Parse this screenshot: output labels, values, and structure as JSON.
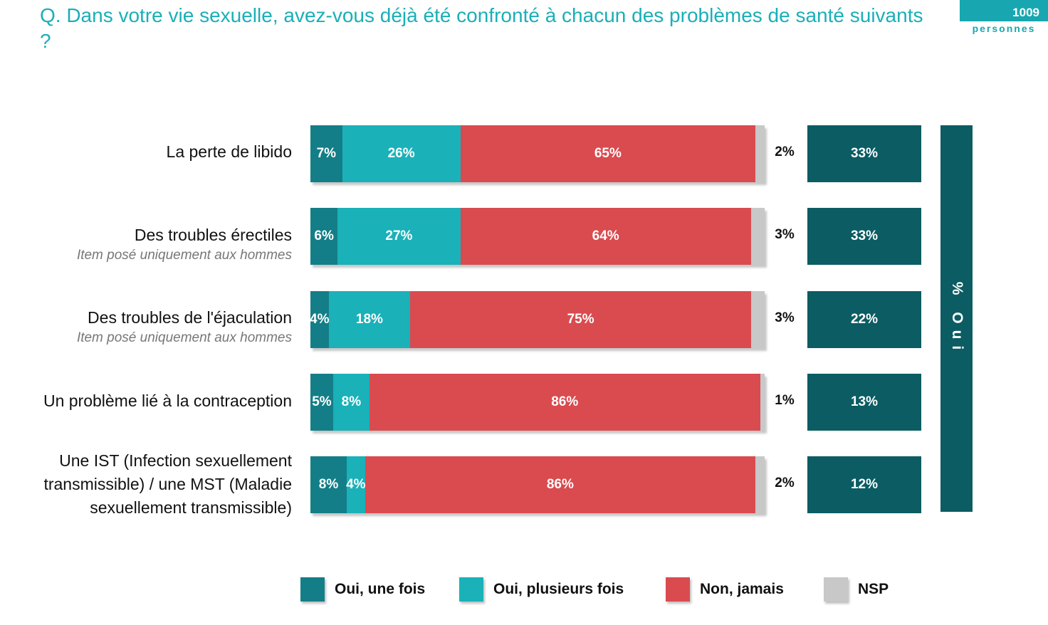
{
  "header": {
    "question": "Q. Dans votre vie sexuelle, avez-vous déjà été confronté à chacun des problèmes de santé suivants ?",
    "sample_count": "1009",
    "sample_label": "personnes"
  },
  "chart_data": {
    "type": "bar",
    "orientation": "horizontal",
    "stacked": true,
    "categories": [
      "La perte de libido",
      "Des troubles érectiles",
      "Des troubles de l'éjaculation",
      "Un problème lié à la contraception",
      "Une IST (Infection sexuellement transmissible) / une MST (Maladie sexuellement transmissible)"
    ],
    "category_notes": [
      "",
      "Item posé uniquement aux hommes",
      "Item posé uniquement aux hommes",
      "",
      ""
    ],
    "series": [
      {
        "name": "Oui, une fois",
        "color": "#137E87",
        "values": [
          7,
          6,
          4,
          5,
          8
        ],
        "labels": [
          "7%",
          "6%",
          "4%",
          "5%",
          "8%"
        ]
      },
      {
        "name": "Oui, plusieurs fois",
        "color": "#1AB1B9",
        "values": [
          26,
          27,
          18,
          8,
          4
        ],
        "labels": [
          "26%",
          "27%",
          "18%",
          "8%",
          "4%"
        ]
      },
      {
        "name": "Non, jamais",
        "color": "#D94B4F",
        "values": [
          65,
          64,
          75,
          86,
          86
        ],
        "labels": [
          "65%",
          "64%",
          "75%",
          "86%",
          "86%"
        ]
      },
      {
        "name": "NSP",
        "color": "#C8C8C8",
        "values": [
          2,
          3,
          3,
          1,
          2
        ],
        "labels": [
          "2%",
          "3%",
          "3%",
          "1%",
          "2%"
        ]
      }
    ],
    "total_oui": {
      "label": "% Oui",
      "color": "#0B5C63",
      "values": [
        33,
        33,
        22,
        13,
        12
      ],
      "labels": [
        "33%",
        "33%",
        "22%",
        "13%",
        "12%"
      ]
    },
    "legend_position": "bottom"
  }
}
